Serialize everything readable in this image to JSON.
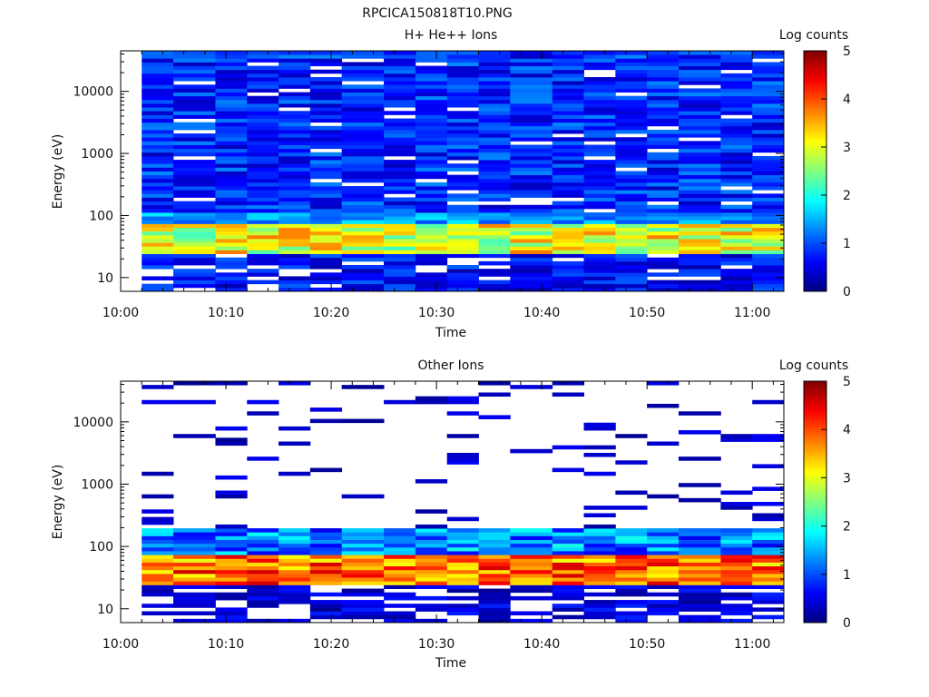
{
  "figure_title": "RPCICA150818T10.PNG",
  "colors": {
    "colormap": [
      "#00007f",
      "#0000ff",
      "#007fff",
      "#00ffff",
      "#7fff7f",
      "#ffff00",
      "#ff7f00",
      "#ff0000",
      "#7f0000"
    ],
    "missing": "#ffffff",
    "axis": "#000000"
  },
  "chart_data": [
    {
      "type": "heatmap",
      "title": "H+ He++ Ions",
      "xlabel": "Time",
      "ylabel": "Energy (eV)",
      "x_unit": "minutes after 10:00",
      "xlim": [
        "10:00",
        "11:03"
      ],
      "x_ticks": [
        "10:00",
        "10:10",
        "10:20",
        "10:30",
        "10:40",
        "10:50",
        "11:00"
      ],
      "yscale": "log",
      "ylim": [
        6,
        45000
      ],
      "y_ticks": [
        "10",
        "100",
        "1000",
        "10000"
      ],
      "colorbar": {
        "label": "Log counts",
        "range": [
          0,
          5
        ],
        "ticks": [
          "0",
          "1",
          "2",
          "3",
          "4",
          "5"
        ]
      },
      "time_bins_start": [
        "10:02",
        "10:05",
        "10:09",
        "10:12",
        "10:15",
        "10:18",
        "10:21",
        "10:25",
        "10:28",
        "10:31",
        "10:34",
        "10:37",
        "10:41",
        "10:44",
        "10:47",
        "10:50",
        "10:53",
        "10:57",
        "11:00"
      ],
      "grid": false,
      "description_levels": {
        "high_energy_background": "log counts about 0.3–1.3 above 100 eV",
        "peak_energy_eV": [
          35,
          60
        ],
        "peak_log_counts": [
          2.5,
          3.8
        ]
      }
    },
    {
      "type": "heatmap",
      "title": "Other Ions",
      "xlabel": "Time",
      "ylabel": "Energy (eV)",
      "xlim": [
        "10:00",
        "11:03"
      ],
      "x_ticks": [
        "10:00",
        "10:10",
        "10:20",
        "10:30",
        "10:40",
        "10:50",
        "11:00"
      ],
      "yscale": "log",
      "ylim": [
        6,
        45000
      ],
      "y_ticks": [
        "10",
        "100",
        "1000",
        "10000"
      ],
      "colorbar": {
        "label": "Log counts",
        "range": [
          0,
          5
        ],
        "ticks": [
          "0",
          "1",
          "2",
          "3",
          "4",
          "5"
        ]
      },
      "time_bins_start": [
        "10:02",
        "10:05",
        "10:09",
        "10:12",
        "10:15",
        "10:18",
        "10:21",
        "10:25",
        "10:28",
        "10:31",
        "10:34",
        "10:37",
        "10:41",
        "10:44",
        "10:47",
        "10:50",
        "10:53",
        "10:57",
        "11:00"
      ],
      "grid": false,
      "description_levels": {
        "band_energy_eV": [
          25,
          200
        ],
        "peak_energy_eV": [
          35,
          60
        ],
        "peak_log_counts": [
          3.0,
          4.6
        ],
        "sparse_high_energy_log_counts": [
          0,
          0.6
        ]
      }
    }
  ]
}
